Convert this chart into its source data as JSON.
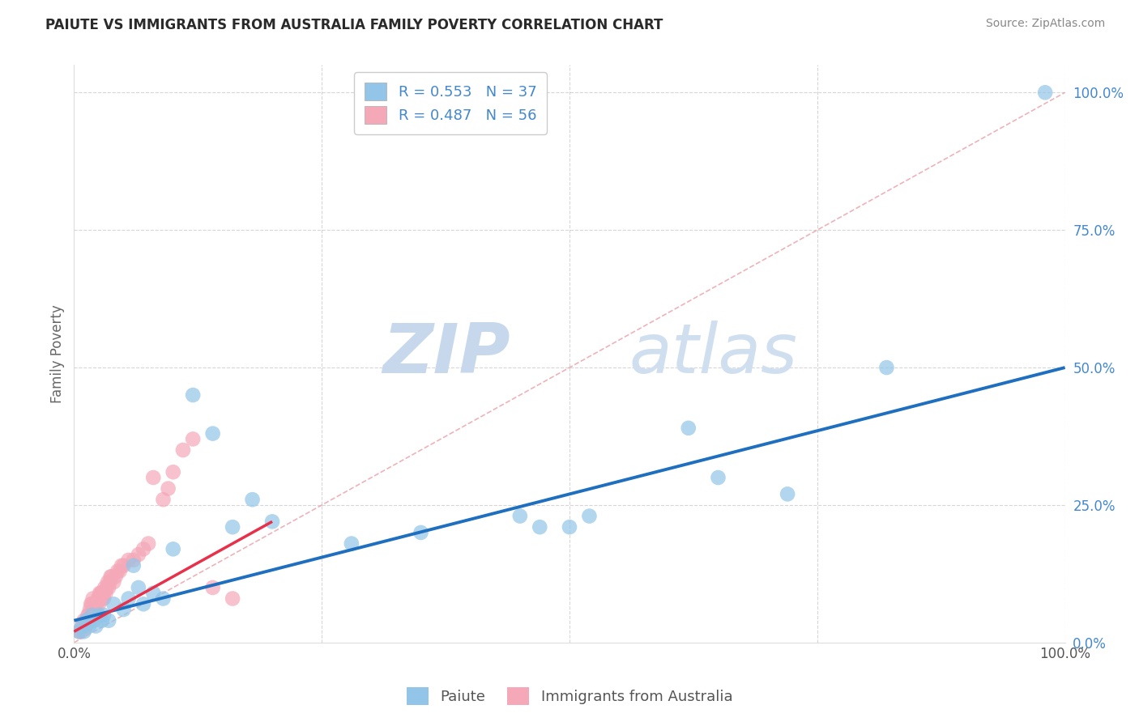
{
  "title": "PAIUTE VS IMMIGRANTS FROM AUSTRALIA FAMILY POVERTY CORRELATION CHART",
  "source": "Source: ZipAtlas.com",
  "ylabel": "Family Poverty",
  "legend_label1": "Paiute",
  "legend_label2": "Immigrants from Australia",
  "R1": 0.553,
  "N1": 37,
  "R2": 0.487,
  "N2": 56,
  "color_blue": "#92C5E8",
  "color_pink": "#F4A8B8",
  "color_line_blue": "#1E6FBF",
  "color_line_pink": "#E8304A",
  "color_diag": "#E8A0A8",
  "xlim": [
    0,
    1
  ],
  "ylim": [
    0,
    1.05
  ],
  "yticks_right": [
    0,
    0.25,
    0.5,
    0.75,
    1.0
  ],
  "ytick_labels_right": [
    "0.0%",
    "25.0%",
    "50.0%",
    "75.0%",
    "100.0%"
  ],
  "paiute_x": [
    0.005,
    0.008,
    0.01,
    0.012,
    0.015,
    0.018,
    0.02,
    0.022,
    0.025,
    0.028,
    0.03,
    0.035,
    0.04,
    0.05,
    0.055,
    0.06,
    0.065,
    0.07,
    0.08,
    0.09,
    0.1,
    0.12,
    0.14,
    0.16,
    0.18,
    0.2,
    0.28,
    0.35,
    0.45,
    0.47,
    0.5,
    0.52,
    0.62,
    0.65,
    0.72,
    0.82,
    0.98
  ],
  "paiute_y": [
    0.02,
    0.03,
    0.02,
    0.04,
    0.03,
    0.05,
    0.04,
    0.03,
    0.05,
    0.04,
    0.05,
    0.04,
    0.07,
    0.06,
    0.08,
    0.14,
    0.1,
    0.07,
    0.09,
    0.08,
    0.17,
    0.45,
    0.38,
    0.21,
    0.26,
    0.22,
    0.18,
    0.2,
    0.23,
    0.21,
    0.21,
    0.23,
    0.39,
    0.3,
    0.27,
    0.5,
    1.0
  ],
  "aus_x": [
    0.005,
    0.007,
    0.008,
    0.009,
    0.01,
    0.01,
    0.012,
    0.013,
    0.014,
    0.015,
    0.015,
    0.016,
    0.017,
    0.018,
    0.019,
    0.02,
    0.02,
    0.021,
    0.022,
    0.023,
    0.024,
    0.025,
    0.025,
    0.026,
    0.027,
    0.028,
    0.028,
    0.03,
    0.03,
    0.031,
    0.032,
    0.033,
    0.034,
    0.035,
    0.036,
    0.037,
    0.038,
    0.04,
    0.042,
    0.044,
    0.046,
    0.048,
    0.05,
    0.055,
    0.06,
    0.065,
    0.07,
    0.075,
    0.08,
    0.09,
    0.095,
    0.1,
    0.11,
    0.12,
    0.14,
    0.16
  ],
  "aus_y": [
    0.02,
    0.02,
    0.03,
    0.03,
    0.03,
    0.04,
    0.03,
    0.04,
    0.05,
    0.04,
    0.05,
    0.06,
    0.07,
    0.07,
    0.08,
    0.05,
    0.06,
    0.06,
    0.07,
    0.07,
    0.08,
    0.07,
    0.08,
    0.09,
    0.09,
    0.08,
    0.09,
    0.08,
    0.09,
    0.1,
    0.09,
    0.1,
    0.11,
    0.1,
    0.11,
    0.12,
    0.12,
    0.11,
    0.12,
    0.13,
    0.13,
    0.14,
    0.14,
    0.15,
    0.15,
    0.16,
    0.17,
    0.18,
    0.3,
    0.26,
    0.28,
    0.31,
    0.35,
    0.37,
    0.1,
    0.08
  ],
  "watermark_zip": "ZIP",
  "watermark_atlas": "atlas",
  "background_color": "#FFFFFF",
  "grid_color": "#CCCCCC",
  "title_fontsize": 12,
  "axis_label_color": "#666666",
  "tick_color_right": "#4488CC",
  "legend_top_text_color": "#4488CC"
}
